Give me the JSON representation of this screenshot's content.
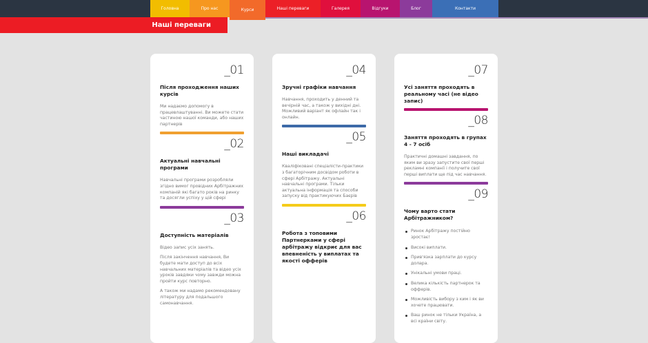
{
  "nav": {
    "items": [
      {
        "label": "Головна",
        "color": "#f2bd00"
      },
      {
        "label": "Про нас",
        "color": "#f6971f"
      },
      {
        "label": "Курси",
        "color": "#f26a2a"
      },
      {
        "label": "Наші переваги",
        "color": "#ec2027"
      },
      {
        "label": "Галерея",
        "color": "#e00f3d"
      },
      {
        "label": "Відгуки",
        "color": "#b8146f"
      },
      {
        "label": "Блог",
        "color": "#8c3b9b"
      },
      {
        "label": "Контакти",
        "color": "#3b6fb6"
      }
    ],
    "active_index": 2
  },
  "banner": {
    "title": "Наші переваги"
  },
  "cards": [
    {
      "blocks": [
        {
          "num": "_01",
          "title": "Після проходження наших курсів",
          "paras": [
            "Ми надаємо допомогу в працевлаштуванні. Ви можете стати частиною нашої команди, або наших партнерів"
          ],
          "bar": "#f0a030"
        },
        {
          "num": "_02",
          "title": "Актуальні навчальні програми",
          "paras": [
            "Навчальні програми розробляли згідно вимог провідних Арбітражних компаній які багато років на ринку та досягли успіху у цій сфері"
          ],
          "bar": "#8c3b9b"
        },
        {
          "num": "_03",
          "title": "Доступність матеріалів",
          "paras": [
            "Відео запис усіх занять.",
            "Після закінчення навчання, Ви будете мати доступ до всіх навчальних матеріалів та відео усіх уроків завдяки чому завжди можна пройти курс повторно.",
            "А також ми надамо рекомендовану літературу для подальшого самонавчання."
          ]
        }
      ]
    },
    {
      "blocks": [
        {
          "num": "_04",
          "title": "Зручні графіки навчання",
          "paras": [
            "Навчання, проходить у денний та вечірній час, а також у вихідні дні. Можливий варіант як офлайн так і онлайн."
          ],
          "bar": "#3d6aa8"
        },
        {
          "num": "_05",
          "title": "Наші викладачі",
          "paras": [
            "Кваліфіковані спеціалісти-практики з багаторічним досвідом роботи в сфері Арбітражу. Актуальні навчальні програми. Тільки актуальна інформація та способи запуску від практикуючих Баєрів"
          ],
          "bar": "#f5cc1a"
        },
        {
          "num": "_06",
          "title": "Робота з топовими Партнерками у сфері арбітражу відкриє для вас впевненість у виплатах та якості офферів",
          "paras": []
        }
      ]
    },
    {
      "blocks": [
        {
          "num": "_07",
          "title": "Усі заняття проходять в реальному часі (не відео запис)",
          "paras": [],
          "bar": "#b8146f"
        },
        {
          "num": "_08",
          "title": "Заняття проходять в групах 4 - 7 осіб",
          "paras": [
            "Практичні домашні завдання, по яким ви зразу запустите свої перші рекламні компанії і получите свої перші виплати ще під час навчання."
          ],
          "bar": "#8c3b9b"
        },
        {
          "num": "_09",
          "title": "Чому варто стати Арбітражником?",
          "paras": [],
          "list": [
            "Ринок Арбітражу постійно зростає!",
            "Високі виплати.",
            "Прив'язка зарплати до курсу долара.",
            "Унікальні умови праці.",
            "Велика кількість партнерок та офферів.",
            "Можливість вибору з ким і як ви хочете працювати.",
            "Ваш ринок не тільки Україна, а всі країни світу."
          ]
        }
      ]
    }
  ]
}
